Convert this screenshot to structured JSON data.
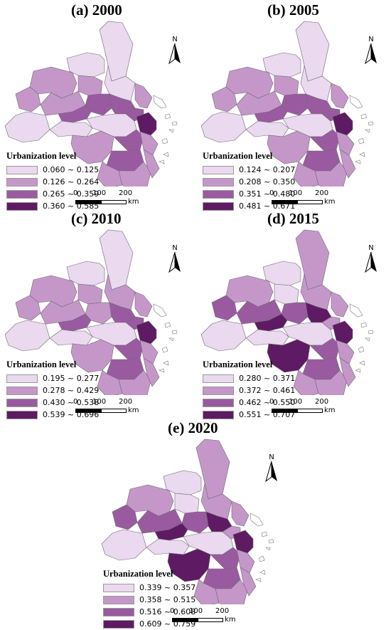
{
  "legend_title": "Urbanization level",
  "north_label": "N",
  "scale": {
    "ticks": [
      "0",
      "100",
      "200"
    ],
    "unit": "km"
  },
  "classes": [
    "#ead9ef",
    "#c597c9",
    "#9a5aa0",
    "#5e1a63"
  ],
  "panels": [
    {
      "title": "(a) 2000",
      "ranges": [
        "0.060 ~ 0.125",
        "0.126 ~ 0.264",
        "0.265 ~ 0.359",
        "0.360 ~ 0.585"
      ],
      "region_classes": [
        0,
        0,
        1,
        0,
        1,
        2,
        2,
        2,
        1,
        0,
        1,
        2,
        3,
        0,
        0,
        1,
        2,
        1,
        2,
        1,
        1,
        1,
        1
      ]
    },
    {
      "title": "(b) 2005",
      "ranges": [
        "0.124 ~ 0.207",
        "0.208 ~ 0.350",
        "0.351 ~ 0.480",
        "0.481 ~ 0.671"
      ],
      "region_classes": [
        0,
        0,
        1,
        0,
        1,
        2,
        2,
        2,
        1,
        0,
        1,
        2,
        3,
        0,
        0,
        1,
        2,
        1,
        2,
        1,
        1,
        1,
        1
      ]
    },
    {
      "title": "(c) 2010",
      "ranges": [
        "0.195 ~ 0.277",
        "0.278 ~ 0.429",
        "0.430 ~ 0.538",
        "0.539 ~ 0.696"
      ],
      "region_classes": [
        0,
        1,
        1,
        0,
        1,
        1,
        2,
        2,
        1,
        0,
        1,
        2,
        3,
        0,
        0,
        1,
        2,
        1,
        2,
        1,
        1,
        1,
        1
      ]
    },
    {
      "title": "(d) 2015",
      "ranges": [
        "0.280 ~ 0.371",
        "0.372 ~ 0.461",
        "0.462 ~ 0.550",
        "0.551 ~ 0.707"
      ],
      "region_classes": [
        1,
        1,
        1,
        0,
        0,
        2,
        3,
        1,
        2,
        0,
        2,
        3,
        3,
        0,
        0,
        3,
        2,
        1,
        2,
        1,
        1,
        1,
        1
      ]
    },
    {
      "title": "(e) 2020",
      "ranges": [
        "0.339 ~ 0.357",
        "0.358 ~ 0.515",
        "0.516 ~ 0.608",
        "0.609 ~ 0.759"
      ],
      "region_classes": [
        1,
        1,
        1,
        0,
        0,
        2,
        3,
        1,
        2,
        0,
        2,
        3,
        3,
        0,
        0,
        3,
        2,
        1,
        2,
        1,
        1,
        1,
        1
      ]
    }
  ]
}
